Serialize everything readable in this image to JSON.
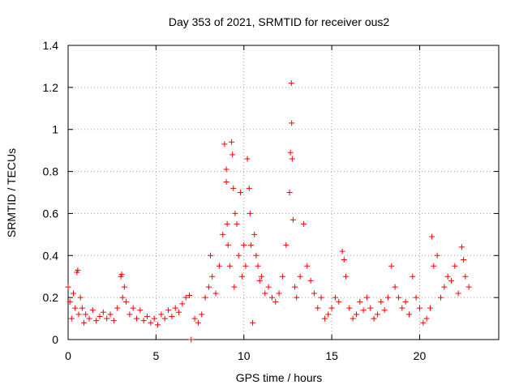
{
  "chart_data": {
    "type": "scatter",
    "title": "Day 353 of 2021, SRMTID for receiver ous2",
    "xlabel": "GPS time / hours",
    "ylabel": "SRMTID / TECUs",
    "xlim": [
      0,
      24.5
    ],
    "ylim": [
      0,
      1.4
    ],
    "xticks": [
      0,
      5,
      10,
      15,
      20
    ],
    "yticks": [
      0,
      0.2,
      0.4,
      0.6,
      0.8,
      1,
      1.2,
      1.4
    ],
    "ytick_labels": [
      "0",
      "0.2",
      "0.4",
      "0.6",
      "0.8",
      "1",
      "1.2",
      "1.4"
    ],
    "grid": true,
    "marker": "plus",
    "color": "#ff0000",
    "series": [
      {
        "name": "SRMTID",
        "x": [
          0.0,
          0.1,
          0.2,
          0.3,
          0.4,
          0.5,
          0.55,
          0.6,
          0.7,
          0.8,
          0.9,
          1.0,
          1.2,
          1.4,
          1.6,
          1.8,
          2.0,
          2.2,
          2.4,
          2.6,
          2.8,
          3.0,
          3.05,
          3.1,
          3.2,
          3.3,
          3.5,
          3.7,
          3.9,
          4.1,
          4.3,
          4.5,
          4.7,
          4.9,
          5.1,
          5.3,
          5.5,
          5.7,
          5.9,
          6.1,
          6.3,
          6.5,
          6.7,
          6.9,
          7.0,
          7.2,
          7.4,
          7.6,
          7.8,
          8.0,
          8.1,
          8.2,
          8.4,
          8.6,
          8.8,
          8.9,
          9.0,
          9.0,
          9.05,
          9.1,
          9.2,
          9.3,
          9.35,
          9.4,
          9.45,
          9.5,
          9.6,
          9.7,
          9.8,
          9.9,
          10.0,
          10.1,
          10.2,
          10.3,
          10.35,
          10.4,
          10.5,
          10.6,
          10.7,
          10.8,
          10.9,
          11.0,
          11.2,
          11.4,
          11.6,
          11.8,
          12.0,
          12.2,
          12.4,
          12.6,
          12.65,
          12.7,
          12.72,
          12.75,
          12.8,
          12.9,
          13.0,
          13.2,
          13.4,
          13.6,
          13.8,
          14.0,
          14.2,
          14.4,
          14.6,
          14.8,
          15.0,
          15.2,
          15.4,
          15.6,
          15.7,
          15.8,
          16.0,
          16.2,
          16.4,
          16.6,
          16.8,
          17.0,
          17.2,
          17.4,
          17.6,
          17.8,
          18.0,
          18.2,
          18.4,
          18.6,
          18.8,
          19.0,
          19.2,
          19.4,
          19.6,
          19.8,
          20.0,
          20.2,
          20.4,
          20.6,
          20.7,
          20.8,
          21.0,
          21.2,
          21.4,
          21.6,
          21.8,
          22.0,
          22.2,
          22.4,
          22.5,
          22.6,
          22.8
        ],
        "y": [
          0.25,
          0.18,
          0.1,
          0.22,
          0.15,
          0.32,
          0.33,
          0.12,
          0.2,
          0.15,
          0.08,
          0.12,
          0.1,
          0.14,
          0.09,
          0.11,
          0.13,
          0.1,
          0.12,
          0.09,
          0.15,
          0.3,
          0.31,
          0.2,
          0.25,
          0.18,
          0.12,
          0.15,
          0.1,
          0.14,
          0.09,
          0.11,
          0.08,
          0.1,
          0.07,
          0.12,
          0.1,
          0.14,
          0.11,
          0.15,
          0.13,
          0.17,
          0.2,
          0.21,
          0.0,
          0.1,
          0.08,
          0.12,
          0.2,
          0.25,
          0.4,
          0.3,
          0.22,
          0.35,
          0.5,
          0.93,
          0.81,
          0.75,
          0.55,
          0.45,
          0.35,
          0.94,
          0.88,
          0.72,
          0.25,
          0.6,
          0.55,
          0.4,
          0.7,
          0.3,
          0.45,
          0.35,
          0.86,
          0.72,
          0.6,
          0.45,
          0.08,
          0.5,
          0.4,
          0.35,
          0.28,
          0.3,
          0.22,
          0.25,
          0.2,
          0.18,
          0.22,
          0.3,
          0.45,
          0.7,
          0.89,
          1.22,
          1.03,
          0.86,
          0.57,
          0.25,
          0.2,
          0.3,
          0.55,
          0.35,
          0.28,
          0.22,
          0.15,
          0.2,
          0.1,
          0.12,
          0.15,
          0.2,
          0.18,
          0.42,
          0.38,
          0.3,
          0.15,
          0.1,
          0.12,
          0.18,
          0.14,
          0.2,
          0.15,
          0.1,
          0.12,
          0.18,
          0.14,
          0.2,
          0.35,
          0.25,
          0.2,
          0.15,
          0.18,
          0.12,
          0.3,
          0.2,
          0.15,
          0.08,
          0.1,
          0.15,
          0.49,
          0.35,
          0.4,
          0.2,
          0.25,
          0.3,
          0.28,
          0.35,
          0.22,
          0.44,
          0.38,
          0.3,
          0.25
        ]
      }
    ]
  }
}
